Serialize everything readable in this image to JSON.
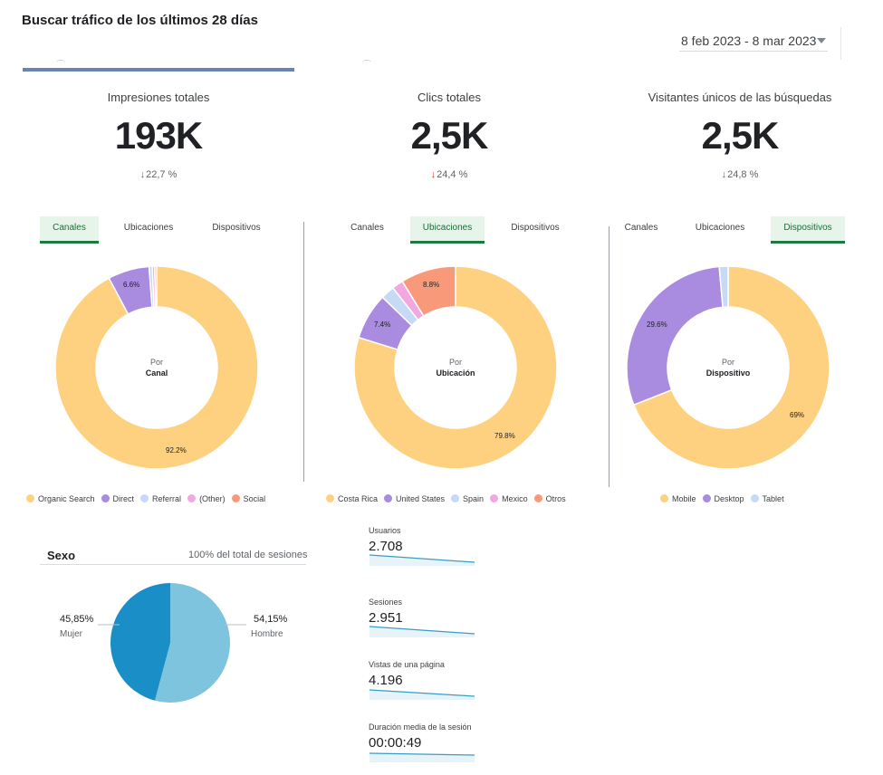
{
  "header": {
    "title": "Buscar tráfico de los últimos 28 días",
    "date_range": "8 feb 2023 - 8 mar 2023"
  },
  "kpis": [
    {
      "label": "Impresiones totales",
      "value": "193K",
      "delta": "22,7 %",
      "direction": "down"
    },
    {
      "label": "Clics totales",
      "value": "2,5K",
      "delta": "24,4 %",
      "direction": "down"
    },
    {
      "label": "Visitantes únicos de las búsquedas",
      "value": "2,5K",
      "delta": "24,8 %",
      "direction": "down"
    }
  ],
  "tab_labels": [
    "Canales",
    "Ubicaciones",
    "Dispositivos"
  ],
  "donuts": [
    {
      "active_tab": 0,
      "center_top": "Por",
      "center_bottom": "Canal",
      "segments": [
        {
          "label": "Organic Search",
          "value": 92.2,
          "color": "#fdd17f",
          "pct_label": "92.2%"
        },
        {
          "label": "Direct",
          "value": 6.6,
          "color": "#a98ce0",
          "pct_label": "6.6%"
        },
        {
          "label": "Referral",
          "value": 0.5,
          "color": "#c6d9f7",
          "pct_label": ""
        },
        {
          "label": "(Other)",
          "value": 0.4,
          "color": "#f1a7e0",
          "pct_label": ""
        },
        {
          "label": "Social",
          "value": 0.3,
          "color": "#f89a7a",
          "pct_label": ""
        }
      ]
    },
    {
      "active_tab": 1,
      "center_top": "Por",
      "center_bottom": "Ubicación",
      "segments": [
        {
          "label": "Costa Rica",
          "value": 79.8,
          "color": "#fdd17f",
          "pct_label": "79.8%"
        },
        {
          "label": "United States",
          "value": 7.4,
          "color": "#a98ce0",
          "pct_label": "7.4%"
        },
        {
          "label": "Spain",
          "value": 2.2,
          "color": "#c6d9f7",
          "pct_label": ""
        },
        {
          "label": "Mexico",
          "value": 1.8,
          "color": "#f1a7e0",
          "pct_label": ""
        },
        {
          "label": "Otros",
          "value": 8.8,
          "color": "#f89a7a",
          "pct_label": "8.8%"
        }
      ]
    },
    {
      "active_tab": 2,
      "center_top": "Por",
      "center_bottom": "Dispositivo",
      "segments": [
        {
          "label": "Mobile",
          "value": 69,
          "color": "#fdd17f",
          "pct_label": "69%"
        },
        {
          "label": "Desktop",
          "value": 29.6,
          "color": "#a98ce0",
          "pct_label": "29.6%"
        },
        {
          "label": "Tablet",
          "value": 1.4,
          "color": "#c6d9f7",
          "pct_label": ""
        }
      ]
    }
  ],
  "gender": {
    "title": "Sexo",
    "subtitle": "100% del total de sesiones",
    "female_pct": "45,85%",
    "female_label": "Mujer",
    "male_pct": "54,15%",
    "male_label": "Hombre",
    "female_value": 45.85,
    "male_value": 54.15,
    "female_color": "#1a8fc7",
    "male_color": "#7ec4de"
  },
  "metrics": [
    {
      "label": "Usuarios",
      "value": "2.708"
    },
    {
      "label": "Sesiones",
      "value": "2.951"
    },
    {
      "label": "Vistas de una página",
      "value": "4.196"
    },
    {
      "label": "Duración media de la sesión",
      "value": "00:00:49"
    }
  ],
  "chart_data": [
    {
      "type": "pie",
      "categories": [
        "Organic Search",
        "Direct",
        "Referral",
        "(Other)",
        "Social"
      ],
      "values": [
        92.2,
        6.6,
        0.5,
        0.4,
        0.3
      ]
    },
    {
      "type": "pie",
      "categories": [
        "Costa Rica",
        "United States",
        "Spain",
        "Mexico",
        "Otros"
      ],
      "values": [
        79.8,
        7.4,
        2.2,
        1.8,
        8.8
      ]
    },
    {
      "type": "pie",
      "categories": [
        "Mobile",
        "Desktop",
        "Tablet"
      ],
      "values": [
        69,
        29.6,
        1.4
      ]
    },
    {
      "type": "pie",
      "categories": [
        "Mujer",
        "Hombre"
      ],
      "values": [
        45.85,
        54.15
      ]
    }
  ]
}
